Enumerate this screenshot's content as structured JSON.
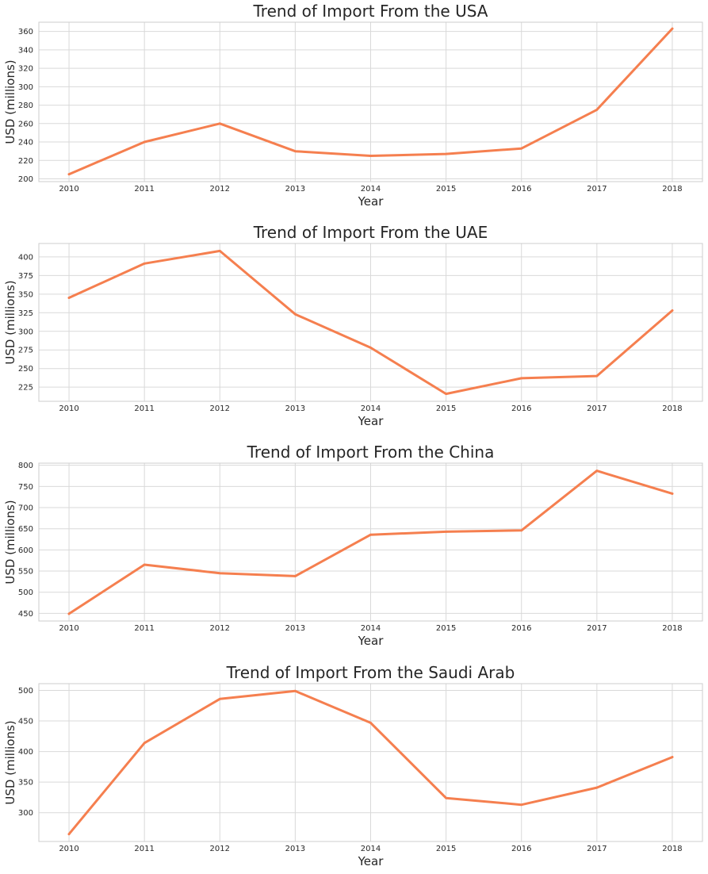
{
  "figure": {
    "line_color": "#f57f4f",
    "grid_color": "#d9d9d9",
    "background": "#ffffff"
  },
  "chart_data": [
    {
      "type": "line",
      "title": "Trend of Import From the USA",
      "xlabel": "Year",
      "ylabel": "USD (millions)",
      "x": [
        2010,
        2011,
        2012,
        2013,
        2014,
        2015,
        2016,
        2017,
        2018
      ],
      "values": [
        205,
        240,
        260,
        230,
        225,
        227,
        233,
        275,
        363
      ],
      "xlim": [
        2009.6,
        2018.4
      ],
      "ylim": [
        197,
        370
      ],
      "yticks": [
        200,
        220,
        240,
        260,
        280,
        300,
        320,
        340,
        360
      ],
      "grid": true
    },
    {
      "type": "line",
      "title": "Trend of Import From the UAE",
      "xlabel": "Year",
      "ylabel": "USD (millions)",
      "x": [
        2010,
        2011,
        2012,
        2013,
        2014,
        2015,
        2016,
        2017,
        2018
      ],
      "values": [
        345,
        391,
        408,
        323,
        278,
        216,
        237,
        240,
        328
      ],
      "xlim": [
        2009.6,
        2018.4
      ],
      "ylim": [
        206,
        418
      ],
      "yticks": [
        225,
        250,
        275,
        300,
        325,
        350,
        375,
        400
      ],
      "grid": true
    },
    {
      "type": "line",
      "title": "Trend of Import From the China",
      "xlabel": "Year",
      "ylabel": "USD (millions)",
      "x": [
        2010,
        2011,
        2012,
        2013,
        2014,
        2015,
        2016,
        2017,
        2018
      ],
      "values": [
        449,
        565,
        545,
        538,
        636,
        643,
        646,
        787,
        733
      ],
      "xlim": [
        2009.6,
        2018.4
      ],
      "ylim": [
        432,
        805
      ],
      "yticks": [
        450,
        500,
        550,
        600,
        650,
        700,
        750,
        800
      ],
      "grid": true
    },
    {
      "type": "line",
      "title": "Trend of Import From the Saudi Arab",
      "xlabel": "Year",
      "ylabel": "USD (millions)",
      "x": [
        2010,
        2011,
        2012,
        2013,
        2014,
        2015,
        2016,
        2017,
        2018
      ],
      "values": [
        265,
        414,
        486,
        499,
        447,
        324,
        313,
        341,
        391
      ],
      "xlim": [
        2009.6,
        2018.4
      ],
      "ylim": [
        253,
        511
      ],
      "yticks": [
        300,
        350,
        400,
        450,
        500
      ],
      "grid": true
    }
  ]
}
